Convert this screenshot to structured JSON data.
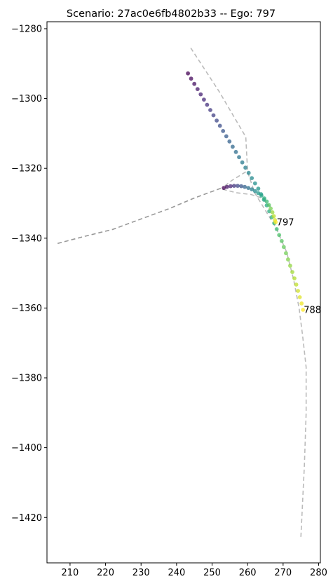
{
  "chart_data": {
    "type": "scatter",
    "title": "Scenario: 27ac0e6fb4802b33 -- Ego: 797",
    "xlabel": "",
    "ylabel": "",
    "xlim": [
      203.5,
      280.5
    ],
    "ylim": [
      -1433,
      -1278
    ],
    "xticks": [
      210,
      220,
      230,
      240,
      250,
      260,
      270,
      280
    ],
    "yticks": [
      -1280,
      -1300,
      -1320,
      -1340,
      -1360,
      -1380,
      -1400,
      -1420
    ],
    "xtick_labels": [
      "210",
      "220",
      "230",
      "240",
      "250",
      "260",
      "270",
      "280"
    ],
    "ytick_labels": [
      "−1280",
      "−1300",
      "−1320",
      "−1340",
      "−1360",
      "−1380",
      "−1400",
      "−1420"
    ],
    "grid": false,
    "lanes": [
      {
        "style": "dashed",
        "color": "#999999",
        "points": [
          [
            206.5,
            -1341.5
          ],
          [
            214,
            -1339.5
          ],
          [
            222,
            -1337.5
          ],
          [
            230,
            -1334.5
          ],
          [
            238,
            -1331.5
          ],
          [
            245,
            -1328.5
          ],
          [
            253,
            -1325.5
          ]
        ]
      },
      {
        "style": "dashed",
        "color": "#bbbbbb",
        "points": [
          [
            244,
            -1285.5
          ],
          [
            252,
            -1298
          ],
          [
            259.5,
            -1311
          ],
          [
            260,
            -1321
          ],
          [
            262,
            -1327
          ],
          [
            265,
            -1332
          ],
          [
            268,
            -1337
          ],
          [
            271,
            -1344
          ],
          [
            273,
            -1352
          ],
          [
            274.5,
            -1360
          ],
          [
            275.5,
            -1368
          ],
          [
            276.5,
            -1377
          ],
          [
            276.5,
            -1390
          ],
          [
            276,
            -1405
          ],
          [
            275,
            -1426
          ]
        ]
      },
      {
        "style": "dashed",
        "color": "#bbbbbb",
        "points": [
          [
            253,
            -1326
          ],
          [
            257,
            -1327
          ],
          [
            261,
            -1327.5
          ],
          [
            264,
            -1328.5
          ],
          [
            266.5,
            -1331
          ]
        ]
      },
      {
        "style": "dashed",
        "color": "#bbbbbb",
        "points": [
          [
            259.5,
            -1321
          ],
          [
            255.5,
            -1323.5
          ],
          [
            253,
            -1325.5
          ]
        ]
      }
    ],
    "series": [
      {
        "name": "788",
        "colorscale": "viridis",
        "points": [
          [
            243.2,
            -1292.8
          ],
          [
            244.1,
            -1294.3
          ],
          [
            245.0,
            -1295.8
          ],
          [
            245.9,
            -1297.3
          ],
          [
            246.8,
            -1298.8
          ],
          [
            247.7,
            -1300.3
          ],
          [
            248.6,
            -1301.8
          ],
          [
            249.5,
            -1303.3
          ],
          [
            250.4,
            -1304.8
          ],
          [
            251.3,
            -1306.3
          ],
          [
            252.2,
            -1307.8
          ],
          [
            253.1,
            -1309.3
          ],
          [
            254.0,
            -1310.8
          ],
          [
            254.9,
            -1312.3
          ],
          [
            255.8,
            -1313.8
          ],
          [
            256.7,
            -1315.3
          ],
          [
            257.6,
            -1316.8
          ],
          [
            258.5,
            -1318.3
          ],
          [
            259.4,
            -1319.8
          ],
          [
            260.3,
            -1321.3
          ],
          [
            261.2,
            -1322.8
          ],
          [
            262.1,
            -1324.3
          ],
          [
            263.0,
            -1325.8
          ],
          [
            263.8,
            -1327.4
          ],
          [
            264.6,
            -1329.0
          ],
          [
            265.4,
            -1330.6
          ],
          [
            266.1,
            -1332.3
          ],
          [
            266.8,
            -1334.0
          ],
          [
            267.5,
            -1335.7
          ],
          [
            268.2,
            -1337.4
          ],
          [
            268.9,
            -1339.1
          ],
          [
            269.6,
            -1340.8
          ],
          [
            270.2,
            -1342.5
          ],
          [
            270.8,
            -1344.3
          ],
          [
            271.4,
            -1346.1
          ],
          [
            272.0,
            -1347.9
          ],
          [
            272.6,
            -1349.7
          ],
          [
            273.2,
            -1351.5
          ],
          [
            273.7,
            -1353.3
          ],
          [
            274.2,
            -1355.1
          ],
          [
            274.7,
            -1356.9
          ],
          [
            275.2,
            -1358.7
          ],
          [
            275.6,
            -1360.5
          ]
        ]
      },
      {
        "name": "797",
        "colorscale": "viridis",
        "points": [
          [
            253.3,
            -1325.6
          ],
          [
            254.2,
            -1325.3
          ],
          [
            255.2,
            -1325.1
          ],
          [
            256.2,
            -1325.0
          ],
          [
            257.2,
            -1325.0
          ],
          [
            258.2,
            -1325.1
          ],
          [
            259.2,
            -1325.3
          ],
          [
            260.2,
            -1325.6
          ],
          [
            261.2,
            -1326.0
          ],
          [
            262.1,
            -1326.5
          ],
          [
            263.0,
            -1327.1
          ],
          [
            263.9,
            -1327.8
          ],
          [
            264.7,
            -1328.6
          ],
          [
            265.4,
            -1329.5
          ],
          [
            266.0,
            -1330.5
          ],
          [
            266.5,
            -1331.5
          ],
          [
            267.0,
            -1332.6
          ],
          [
            267.4,
            -1333.7
          ],
          [
            267.7,
            -1334.8
          ],
          [
            267.9,
            -1335.4
          ]
        ]
      }
    ],
    "annotations": [
      {
        "text": "797",
        "x": 268.2,
        "y": -1335.4
      },
      {
        "text": "788",
        "x": 275.8,
        "y": -1360.5
      }
    ]
  }
}
